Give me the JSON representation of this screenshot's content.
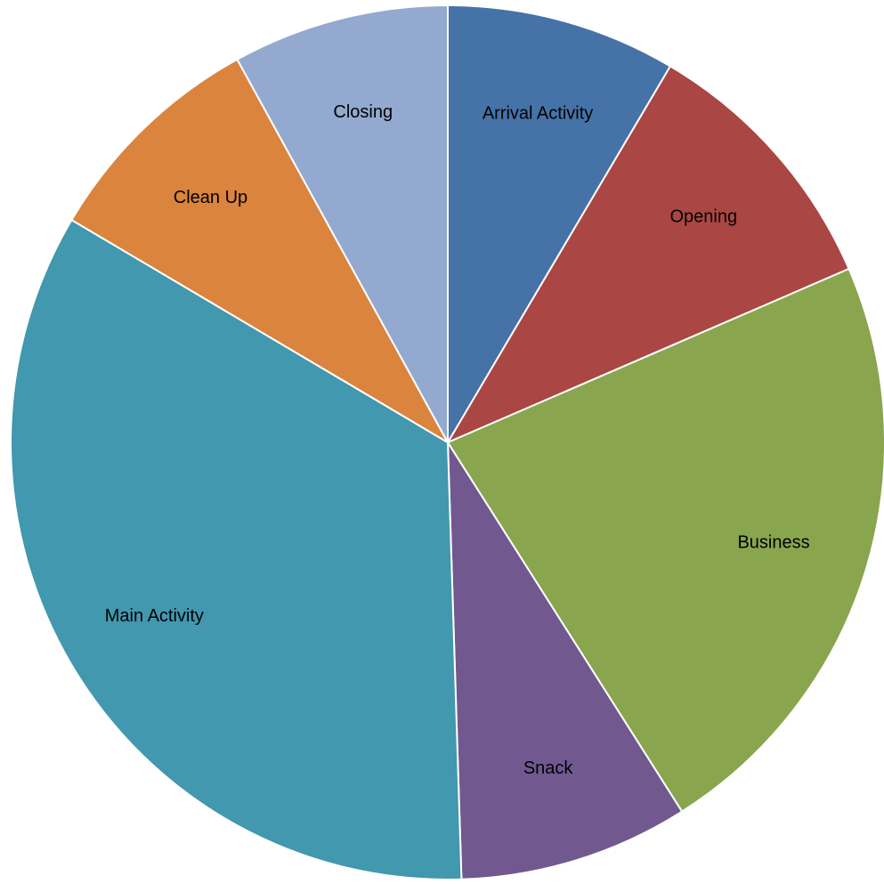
{
  "chart_data": {
    "type": "pie",
    "title": "",
    "slices": [
      {
        "label": "Arrival Activity",
        "value": 8.5,
        "color": "#4572A7"
      },
      {
        "label": "Opening",
        "value": 10.0,
        "color": "#AA4643"
      },
      {
        "label": "Business",
        "value": 22.5,
        "color": "#89A54E"
      },
      {
        "label": "Snack",
        "value": 8.5,
        "color": "#71588F"
      },
      {
        "label": "Main Activity",
        "value": 34.0,
        "color": "#4198AF"
      },
      {
        "label": "Clean Up",
        "value": 8.5,
        "color": "#DB843D"
      },
      {
        "label": "Closing",
        "value": 8.0,
        "color": "#93A9CF"
      }
    ],
    "start_angle_deg": 0,
    "direction": "clockwise",
    "legend": "none",
    "data_labels": "inside-slices"
  }
}
